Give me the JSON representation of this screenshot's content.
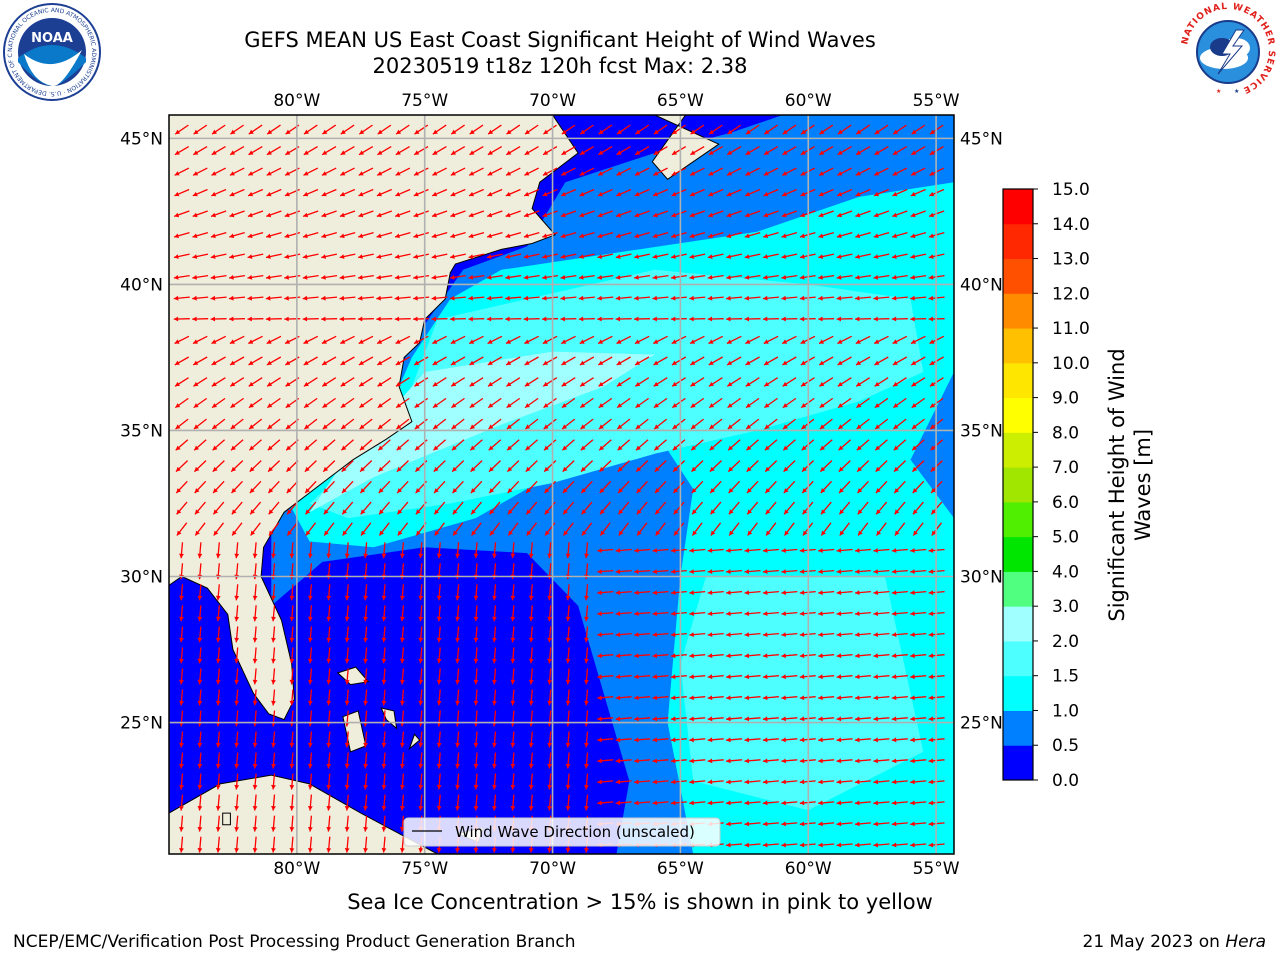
{
  "header": {
    "title_line1": "GEFS MEAN US East Coast Significant Height of Wind Waves",
    "title_line2": "20230519 t18z 120h fcst   Max: 2.38"
  },
  "logos": {
    "left": {
      "name": "noaa-logo",
      "text": "NOAA",
      "ring_text": "NATIONAL OCEANIC AND ATMOSPHERIC ADMINISTRATION · U.S. DEPARTMENT OF COMMERCE"
    },
    "right": {
      "name": "nws-logo",
      "ring_text": "NATIONAL WEATHER SERVICE"
    }
  },
  "map": {
    "lon_ticks": [
      "80°W",
      "75°W",
      "70°W",
      "65°W",
      "60°W",
      "55°W"
    ],
    "lat_ticks": [
      "45°N",
      "40°N",
      "35°N",
      "30°N",
      "25°N"
    ],
    "lon_values": [
      -80,
      -75,
      -70,
      -65,
      -60,
      -55
    ],
    "lat_values": [
      45,
      40,
      35,
      30,
      25
    ],
    "extent": {
      "lon_min": -85,
      "lon_max": -54.3,
      "lat_min": 20.5,
      "lat_max": 45.8
    },
    "land_color": "#efeedc",
    "grid_color": "#b0b0b0",
    "arrow_color": "#ff0000",
    "legend_label": "Wind Wave Direction (unscaled)"
  },
  "colorbar": {
    "label_line1": "Significant Height of Wind",
    "label_line2": "Waves [m]",
    "tick_labels": [
      "0.0",
      "0.5",
      "1.0",
      "1.5",
      "2.0",
      "3.0",
      "4.0",
      "5.0",
      "6.0",
      "7.0",
      "8.0",
      "9.0",
      "10.0",
      "11.0",
      "12.0",
      "13.0",
      "14.0",
      "15.0"
    ],
    "colors": [
      "#0000ff",
      "#0080ff",
      "#00ffff",
      "#4dffff",
      "#a0ffff",
      "#50ff80",
      "#00e600",
      "#50ee00",
      "#a0e600",
      "#ccee00",
      "#ffff00",
      "#ffe600",
      "#ffc000",
      "#ff8c00",
      "#ff5000",
      "#ff2800",
      "#ff0000"
    ]
  },
  "caption": "Sea Ice Concentration > 15% is shown in pink to yellow",
  "footer": {
    "left": "NCEP/EMC/Verification Post Processing Product Generation Branch",
    "right_date": "21 May 2023 on ",
    "right_host": "Hera"
  }
}
